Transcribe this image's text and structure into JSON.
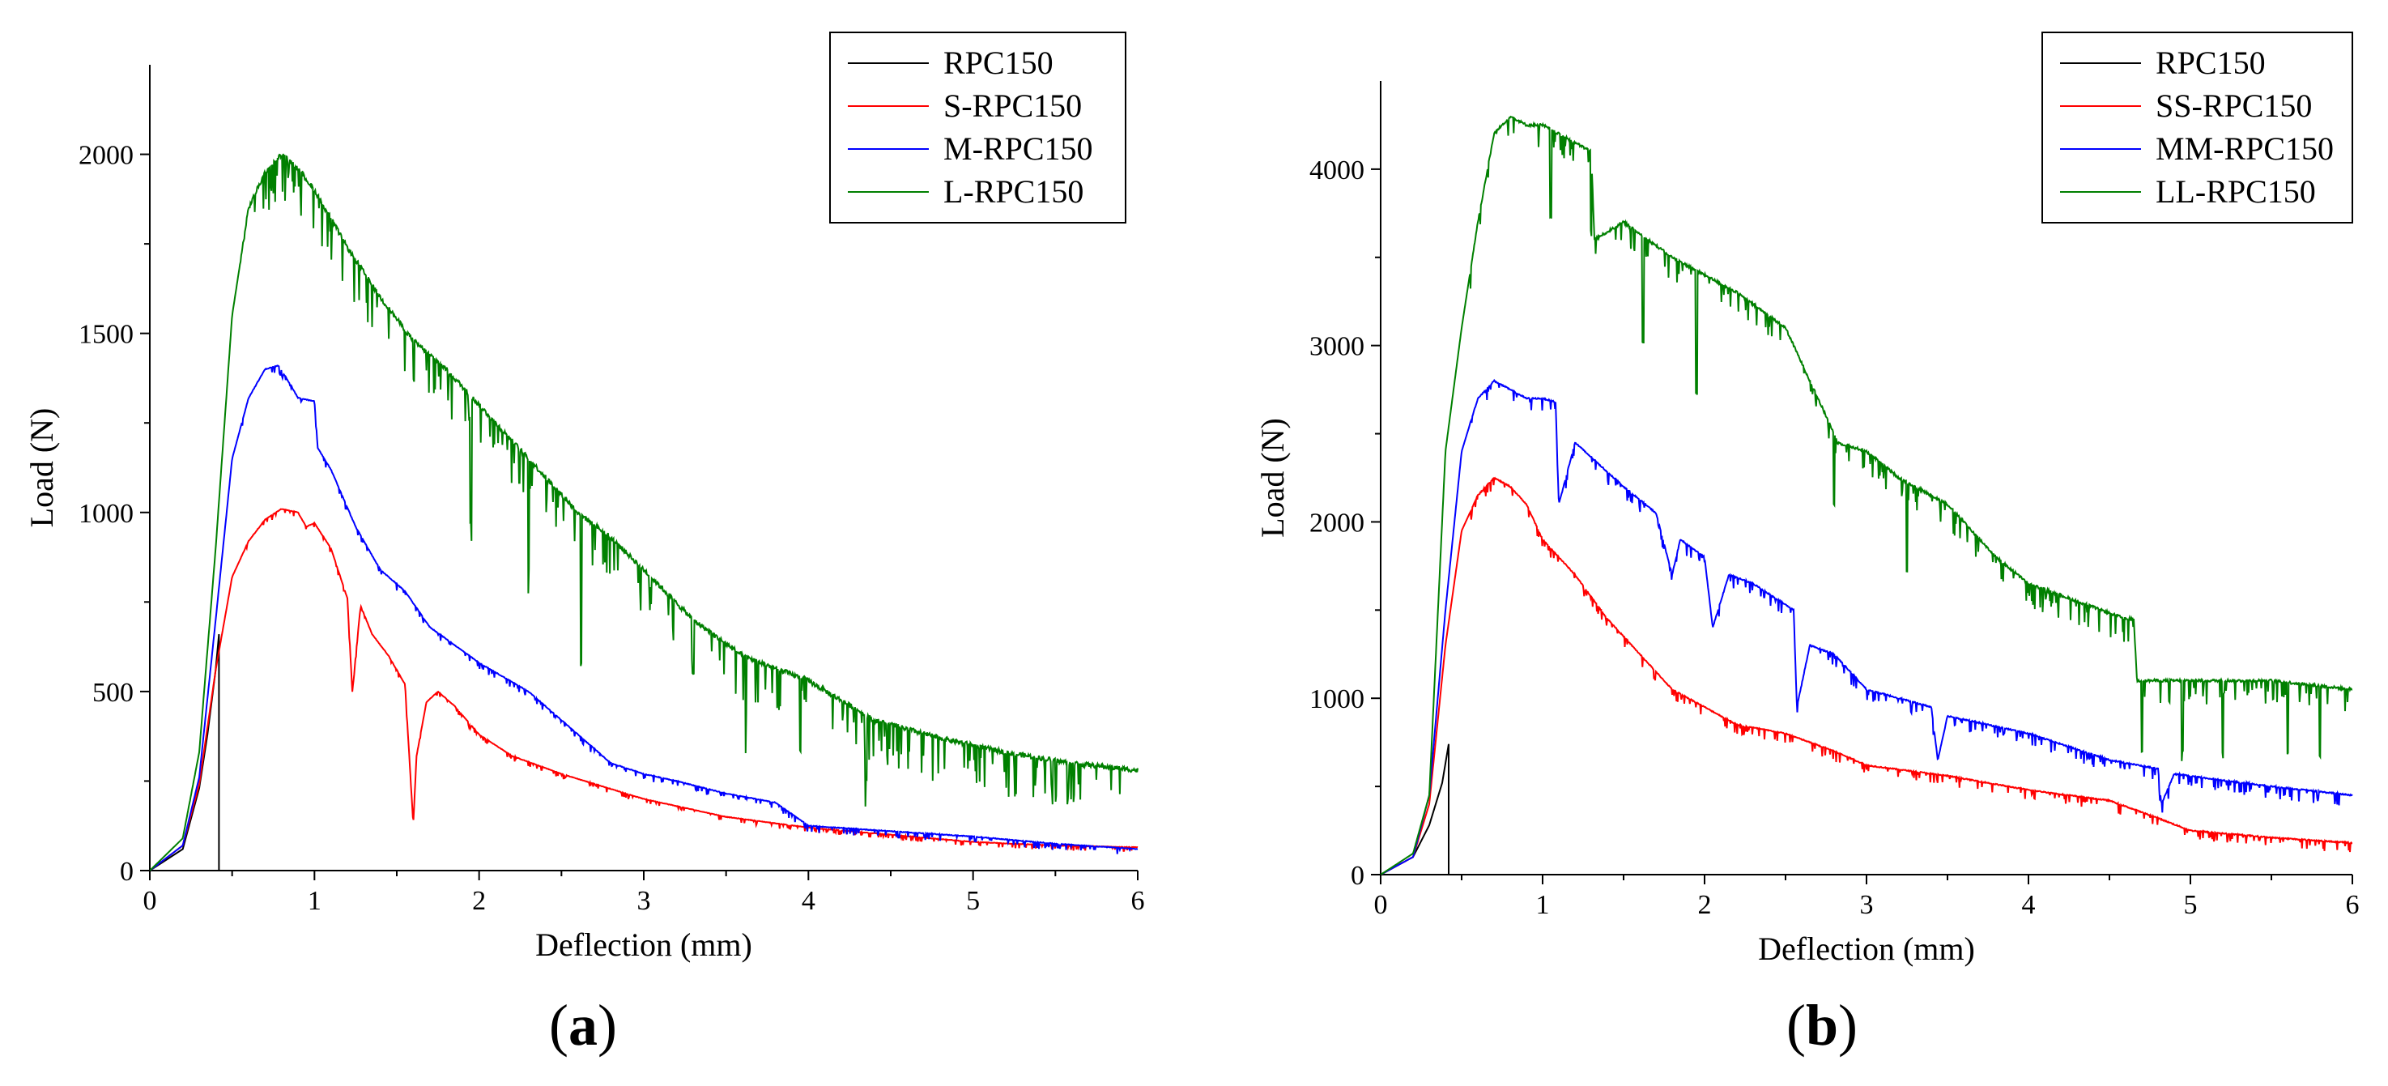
{
  "figure": {
    "panels": [
      "a",
      "b"
    ]
  },
  "chart_data": [
    {
      "type": "line",
      "panel_label": "a",
      "xlabel": "Deflection (mm)",
      "ylabel": "Load (N)",
      "xlim": [
        0,
        6
      ],
      "ylim": [
        0,
        2250
      ],
      "xticks": [
        0,
        1,
        2,
        3,
        4,
        5,
        6
      ],
      "yticks": [
        0,
        500,
        1000,
        1500,
        2000
      ],
      "legend_position": "top-right",
      "series": [
        {
          "name": "RPC150",
          "color": "#000000",
          "x": [
            0,
            0.2,
            0.3,
            0.35,
            0.4,
            0.42,
            0.42,
            0.43
          ],
          "y": [
            0,
            60,
            230,
            380,
            560,
            660,
            0,
            0
          ],
          "noise": 0
        },
        {
          "name": "S-RPC150",
          "color": "#ff0000",
          "x": [
            0,
            0.2,
            0.3,
            0.4,
            0.5,
            0.6,
            0.7,
            0.8,
            0.9,
            0.95,
            1.0,
            1.1,
            1.2,
            1.23,
            1.28,
            1.35,
            1.45,
            1.55,
            1.6,
            1.62,
            1.68,
            1.75,
            1.85,
            2.0,
            2.2,
            2.5,
            3.0,
            3.5,
            4.0,
            4.5,
            5.0,
            5.5,
            6.0
          ],
          "y": [
            0,
            70,
            240,
            560,
            820,
            920,
            980,
            1010,
            1000,
            960,
            970,
            900,
            760,
            500,
            740,
            660,
            600,
            520,
            130,
            320,
            470,
            500,
            460,
            380,
            320,
            270,
            200,
            150,
            120,
            100,
            80,
            70,
            65
          ],
          "noise": 6
        },
        {
          "name": "M-RPC150",
          "color": "#0000ff",
          "x": [
            0,
            0.2,
            0.3,
            0.4,
            0.5,
            0.6,
            0.7,
            0.78,
            0.85,
            0.9,
            1.0,
            1.02,
            1.1,
            1.25,
            1.4,
            1.45,
            1.55,
            1.7,
            2.0,
            2.3,
            2.5,
            2.8,
            3.0,
            3.2,
            3.5,
            3.8,
            4.0,
            4.5,
            5.0,
            5.5,
            6.0
          ],
          "y": [
            0,
            70,
            260,
            700,
            1150,
            1320,
            1400,
            1410,
            1360,
            1320,
            1310,
            1180,
            1120,
            960,
            840,
            820,
            780,
            680,
            580,
            500,
            420,
            300,
            270,
            250,
            215,
            190,
            125,
            110,
            95,
            75,
            60
          ],
          "noise": 8
        },
        {
          "name": "L-RPC150",
          "color": "#008000",
          "x": [
            0,
            0.2,
            0.3,
            0.4,
            0.5,
            0.6,
            0.7,
            0.8,
            0.9,
            1.0,
            1.1,
            1.2,
            1.4,
            1.6,
            1.8,
            2.0,
            2.3,
            2.6,
            2.8,
            3.0,
            3.3,
            3.6,
            4.0,
            4.4,
            4.8,
            5.2,
            5.6,
            6.0
          ],
          "y": [
            0,
            90,
            330,
            900,
            1550,
            1850,
            1950,
            2000,
            1960,
            1900,
            1820,
            1740,
            1600,
            1480,
            1400,
            1300,
            1150,
            1000,
            930,
            840,
            700,
            600,
            530,
            420,
            370,
            330,
            300,
            280
          ],
          "noise": 55,
          "dips": [
            [
              1.95,
              350
            ],
            [
              2.3,
              300
            ],
            [
              2.62,
              420
            ],
            [
              3.3,
              150
            ],
            [
              3.62,
              160
            ],
            [
              3.95,
              200
            ],
            [
              4.35,
              170
            ]
          ]
        }
      ]
    },
    {
      "type": "line",
      "panel_label": "b",
      "xlabel": "Deflection (mm)",
      "ylabel": "Load (N)",
      "xlim": [
        0,
        6
      ],
      "ylim": [
        0,
        4500
      ],
      "xticks": [
        0,
        1,
        2,
        3,
        4,
        5,
        6
      ],
      "yticks": [
        0,
        1000,
        2000,
        3000,
        4000
      ],
      "legend_position": "top-right",
      "series": [
        {
          "name": "RPC150",
          "color": "#000000",
          "x": [
            0,
            0.2,
            0.3,
            0.38,
            0.42,
            0.42,
            0.43
          ],
          "y": [
            0,
            100,
            280,
            520,
            740,
            0,
            0
          ],
          "noise": 0
        },
        {
          "name": "SS-RPC150",
          "color": "#ff0000",
          "x": [
            0,
            0.2,
            0.3,
            0.4,
            0.5,
            0.6,
            0.7,
            0.8,
            0.9,
            1.0,
            1.2,
            1.4,
            1.6,
            1.8,
            2.0,
            2.2,
            2.5,
            2.8,
            3.0,
            3.5,
            4.0,
            4.5,
            4.8,
            5.0,
            5.5,
            6.0
          ],
          "y": [
            0,
            100,
            400,
            1300,
            1950,
            2150,
            2250,
            2200,
            2100,
            1900,
            1700,
            1450,
            1250,
            1050,
            950,
            850,
            800,
            700,
            620,
            560,
            480,
            420,
            320,
            250,
            210,
            180
          ],
          "noise": 25
        },
        {
          "name": "MM-RPC150",
          "color": "#0000ff",
          "x": [
            0,
            0.2,
            0.3,
            0.4,
            0.5,
            0.6,
            0.7,
            0.8,
            0.9,
            1.0,
            1.08,
            1.1,
            1.2,
            1.5,
            1.7,
            1.8,
            1.85,
            2.0,
            2.05,
            2.15,
            2.3,
            2.55,
            2.57,
            2.65,
            2.8,
            3.0,
            3.4,
            3.44,
            3.5,
            4.0,
            4.5,
            4.8,
            4.82,
            4.9,
            5.5,
            6.0
          ],
          "y": [
            0,
            100,
            450,
            1500,
            2400,
            2700,
            2800,
            2750,
            2700,
            2700,
            2680,
            2100,
            2450,
            2200,
            2050,
            1700,
            1900,
            1800,
            1400,
            1700,
            1650,
            1500,
            950,
            1300,
            1250,
            1050,
            950,
            650,
            900,
            800,
            650,
            600,
            400,
            570,
            500,
            450
          ],
          "noise": 30
        },
        {
          "name": "LL-RPC150",
          "color": "#008000",
          "x": [
            0,
            0.2,
            0.3,
            0.4,
            0.5,
            0.6,
            0.7,
            0.8,
            0.9,
            1.0,
            1.1,
            1.3,
            1.32,
            1.5,
            1.8,
            2.0,
            2.2,
            2.5,
            2.8,
            2.82,
            3.0,
            3.2,
            3.5,
            3.8,
            4.0,
            4.3,
            4.6,
            4.65,
            4.67,
            4.8,
            5.0,
            5.5,
            6.0
          ],
          "y": [
            0,
            120,
            450,
            2400,
            3100,
            3700,
            4200,
            4300,
            4250,
            4250,
            4200,
            4100,
            3600,
            3700,
            3500,
            3400,
            3300,
            3100,
            2500,
            2450,
            2400,
            2250,
            2100,
            1800,
            1650,
            1550,
            1450,
            1450,
            1100,
            1100,
            1100,
            1100,
            1050
          ],
          "noise": 60,
          "dips": [
            [
              1.05,
              500
            ],
            [
              1.3,
              450
            ],
            [
              1.62,
              600
            ],
            [
              1.95,
              700
            ],
            [
              2.8,
              400
            ],
            [
              3.25,
              500
            ],
            [
              4.7,
              400
            ],
            [
              4.95,
              400
            ],
            [
              5.2,
              400
            ],
            [
              5.6,
              400
            ],
            [
              5.8,
              400
            ]
          ]
        }
      ]
    }
  ]
}
